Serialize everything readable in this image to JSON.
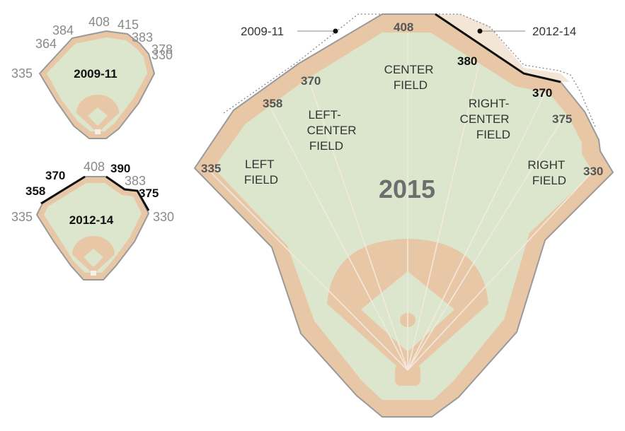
{
  "colors": {
    "warning_track": "#e8c7a6",
    "grass": "#dbe6cd",
    "wall": "#9a9a9a",
    "new_wall": "#111111",
    "old_outline": "#888888",
    "ray": "#f3e9de"
  },
  "main": {
    "year": "2015",
    "labels": {
      "lf": "335",
      "lf_gap": "358",
      "lc": "370",
      "cf": "408",
      "rc_new": "380",
      "rc_deep": "370",
      "rf_gap": "375",
      "rf": "330"
    },
    "zones": {
      "left_field": [
        "LEFT",
        "FIELD"
      ],
      "left_center": [
        "LEFT-",
        "CENTER",
        "FIELD"
      ],
      "center": [
        "CENTER",
        "FIELD"
      ],
      "right_center": [
        "RIGHT-",
        "CENTER",
        "FIELD"
      ],
      "right_field": [
        "RIGHT",
        "FIELD"
      ]
    },
    "callouts": {
      "old": "2009-11",
      "mid": "2012-14"
    }
  },
  "inset_2009": {
    "title": "2009-11",
    "labels": {
      "lf": "335",
      "a": "364",
      "b": "384",
      "cf": "408",
      "c": "415",
      "d": "383",
      "e": "378",
      "f": "330"
    }
  },
  "inset_2012": {
    "title": "2012-14",
    "labels": {
      "lf": "335",
      "lc_gap": "358",
      "lc": "370",
      "cf": "408",
      "rc": "390",
      "rc2": "383",
      "rf_gap": "375",
      "rf": "330"
    }
  }
}
